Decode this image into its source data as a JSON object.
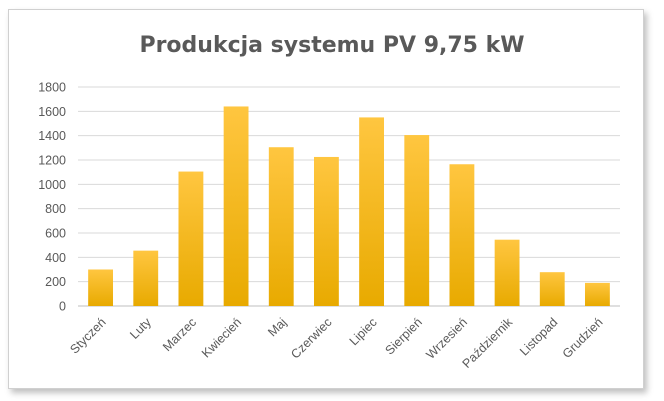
{
  "chart_data": {
    "type": "bar",
    "title": "Produkcja systemu PV 9,75 kW",
    "xlabel": "",
    "ylabel": "",
    "categories": [
      "Styczeń",
      "Luty",
      "Marzec",
      "Kwiecień",
      "Maj",
      "Czerwiec",
      "Lipiec",
      "Sierpień",
      "Wrzesień",
      "Październik",
      "Listopad",
      "Grudzień"
    ],
    "values": [
      300,
      455,
      1105,
      1640,
      1305,
      1225,
      1550,
      1405,
      1165,
      545,
      278,
      190
    ],
    "ylim": [
      0,
      1800
    ],
    "yticks": [
      0,
      200,
      400,
      600,
      800,
      1000,
      1200,
      1400,
      1600,
      1800
    ],
    "grid": true,
    "legend": "none",
    "colors": {
      "bar_top": "#ffc640",
      "bar_bottom": "#e8aa00",
      "grid": "#d9d9d9",
      "axis": "#bfbfbf"
    }
  }
}
